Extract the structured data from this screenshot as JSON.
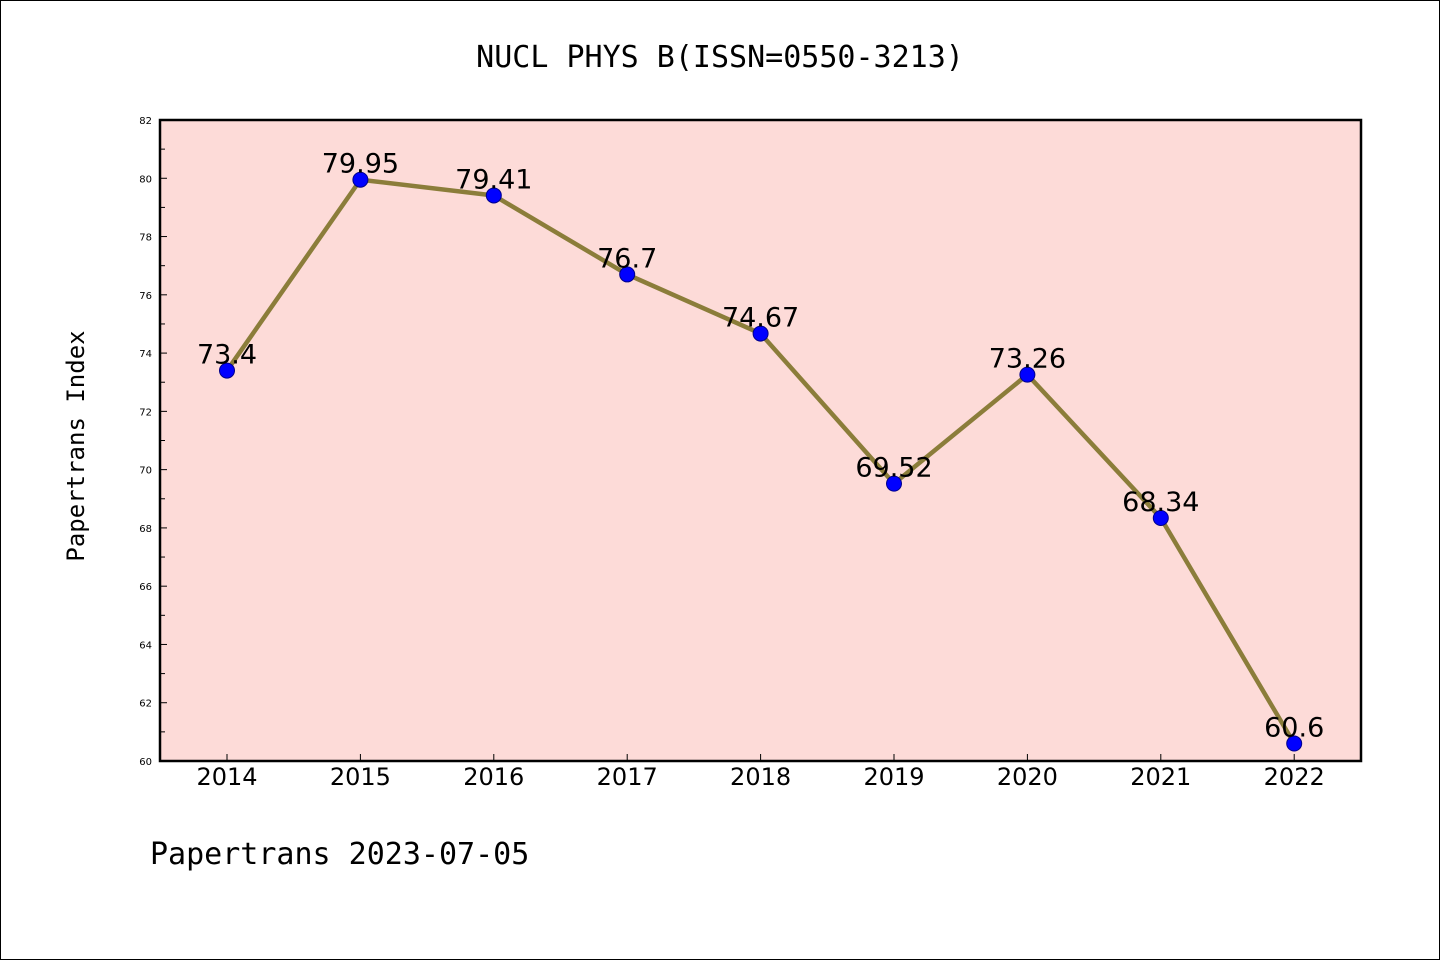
{
  "chart_data": {
    "type": "line",
    "title": "NUCL PHYS B(ISSN=0550-3213)",
    "ylabel": "Papertrans Index",
    "xlabel": "",
    "categories": [
      "2014",
      "2015",
      "2016",
      "2017",
      "2018",
      "2019",
      "2020",
      "2021",
      "2022"
    ],
    "series": [
      {
        "values": [
          73.4,
          79.95,
          79.41,
          76.7,
          74.67,
          69.52,
          73.26,
          68.34,
          60.6
        ],
        "labels": [
          "73.4",
          "79.95",
          "79.41",
          "76.7",
          "74.67",
          "69.52",
          "73.26",
          "68.34",
          "60.6"
        ]
      }
    ],
    "ylim": [
      60,
      82
    ],
    "yticks": [
      60,
      62,
      64,
      66,
      68,
      70,
      72,
      74,
      76,
      78,
      80,
      82
    ],
    "grid": false,
    "colors": {
      "plot_background": "#fddbd8",
      "line": "#8b7d3a",
      "marker": "#0000ff"
    }
  },
  "footer": "Papertrans 2023-07-05"
}
